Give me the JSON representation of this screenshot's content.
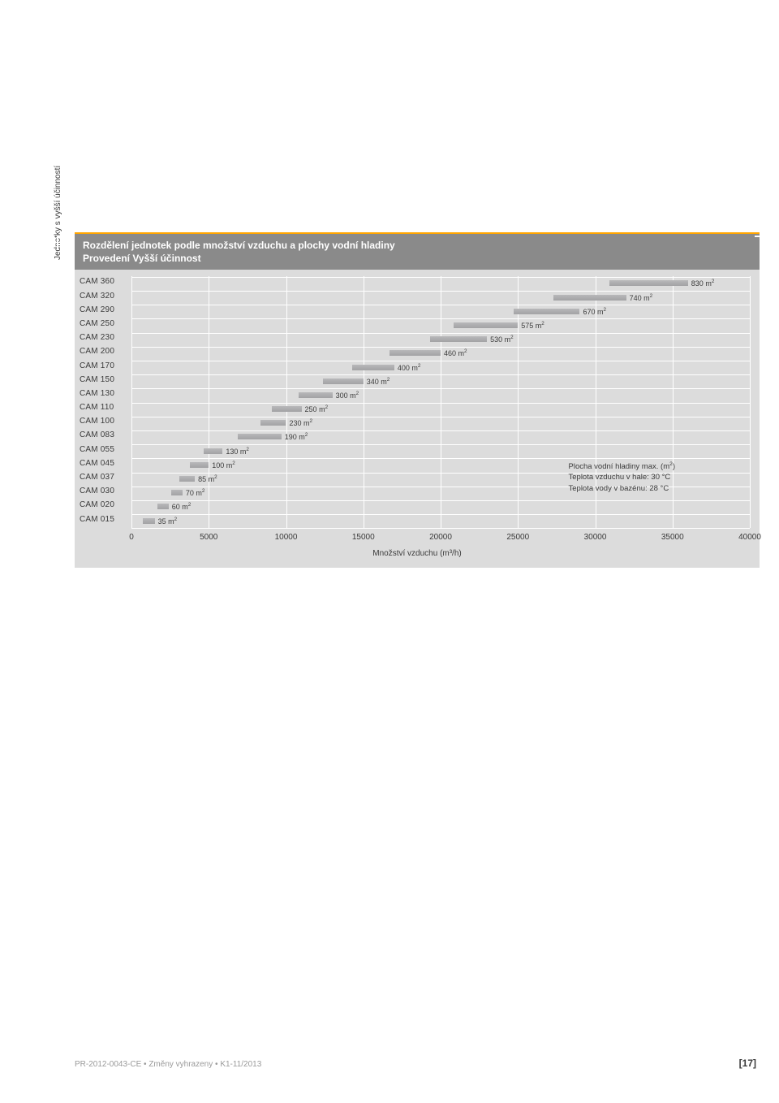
{
  "chart": {
    "title_line1": "Rozdělení jednotek podle množství vzduchu a plochy vodní hladiny",
    "title_line2": "Provedení Vyšší účinnost",
    "type": "bar-horizontal",
    "xlim": [
      0,
      40000
    ],
    "xtick_step": 5000,
    "xticks": [
      "0",
      "5000",
      "10000",
      "15000",
      "20000",
      "25000",
      "30000",
      "35000",
      "40000"
    ],
    "xlabel": "Množství vzduchu (m³/h)",
    "ylabel": "Jednotky s vyšší účinností",
    "bar_color_a": "#b8b8ba",
    "bar_color_b": "#a2a2a4",
    "grid_color": "#ffffff",
    "background_color": "#dcdcdc",
    "label_fontsize": 10,
    "rows": [
      {
        "name": "CAM 360",
        "x0": 30900,
        "x1": 36000,
        "value_label": "830 m²"
      },
      {
        "name": "CAM 320",
        "x0": 27300,
        "x1": 32000,
        "value_label": "740 m²"
      },
      {
        "name": "CAM 290",
        "x0": 24700,
        "x1": 29000,
        "value_label": "670 m²"
      },
      {
        "name": "CAM 250",
        "x0": 20850,
        "x1": 25000,
        "value_label": "575 m²"
      },
      {
        "name": "CAM 230",
        "x0": 19300,
        "x1": 23000,
        "value_label": "530 m²"
      },
      {
        "name": "CAM 200",
        "x0": 16700,
        "x1": 20000,
        "value_label": "460 m²"
      },
      {
        "name": "CAM 170",
        "x0": 14300,
        "x1": 17000,
        "value_label": "400 m²"
      },
      {
        "name": "CAM 150",
        "x0": 12400,
        "x1": 15000,
        "value_label": "340 m²"
      },
      {
        "name": "CAM 130",
        "x0": 10800,
        "x1": 13000,
        "value_label": "300 m²"
      },
      {
        "name": "CAM 110",
        "x0": 9100,
        "x1": 11000,
        "value_label": "250 m²"
      },
      {
        "name": "CAM 100",
        "x0": 8350,
        "x1": 10000,
        "value_label": "230 m²"
      },
      {
        "name": "CAM 083",
        "x0": 6900,
        "x1": 9700,
        "value_label": "190 m²"
      },
      {
        "name": "CAM 055",
        "x0": 4670,
        "x1": 5900,
        "value_label": "130 m²"
      },
      {
        "name": "CAM 045",
        "x0": 3800,
        "x1": 5000,
        "value_label": "100 m²"
      },
      {
        "name": "CAM 037",
        "x0": 3100,
        "x1": 4100,
        "value_label": "85 m²"
      },
      {
        "name": "CAM 030",
        "x0": 2550,
        "x1": 3300,
        "value_label": "70 m²"
      },
      {
        "name": "CAM 020",
        "x0": 1700,
        "x1": 2400,
        "value_label": "60 m²"
      },
      {
        "name": "CAM 015",
        "x0": 750,
        "x1": 1500,
        "value_label": "35 m²"
      }
    ],
    "legend": {
      "lines": [
        "Plocha vodní hladiny max. (m²)",
        "Teplota vzduchu v hale: 30 °C",
        "Teplota vody v bazénu: 28 °C"
      ]
    }
  },
  "footer": {
    "code": "PR-2012-0043-CE",
    "note": "Změny vyhrazeny",
    "rev": "K1-11/2013",
    "page": "[17]"
  }
}
